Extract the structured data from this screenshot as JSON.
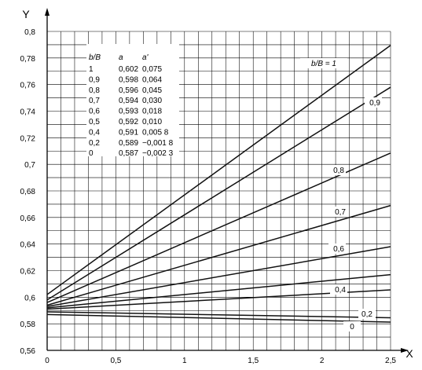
{
  "chart_data": {
    "type": "line",
    "xlabel": "X",
    "ylabel": "Y",
    "xlim": [
      0,
      2.5
    ],
    "ylim": [
      0.56,
      0.8
    ],
    "grid": true,
    "x_ticks": [
      {
        "value": 0,
        "label": "0"
      },
      {
        "value": 0.5,
        "label": "0,5"
      },
      {
        "value": 1,
        "label": "1"
      },
      {
        "value": 1.5,
        "label": "1,5"
      },
      {
        "value": 2,
        "label": "2"
      },
      {
        "value": 2.5,
        "label": "2,5"
      }
    ],
    "y_ticks": [
      {
        "value": 0.56,
        "label": "0,56"
      },
      {
        "value": 0.58,
        "label": "0,58"
      },
      {
        "value": 0.6,
        "label": "0,6"
      },
      {
        "value": 0.62,
        "label": "0,62"
      },
      {
        "value": 0.64,
        "label": "0,64"
      },
      {
        "value": 0.66,
        "label": "0,66"
      },
      {
        "value": 0.68,
        "label": "0,68"
      },
      {
        "value": 0.7,
        "label": "0,7"
      },
      {
        "value": 0.72,
        "label": "0,72"
      },
      {
        "value": 0.74,
        "label": "0,74"
      },
      {
        "value": 0.76,
        "label": "0,76"
      },
      {
        "value": 0.78,
        "label": "0,78"
      },
      {
        "value": 0.8,
        "label": "0,8"
      }
    ],
    "series": [
      {
        "label": "b/B = 1",
        "a": 0.602,
        "a_prime": 0.075,
        "x": [
          0,
          2.5
        ],
        "y": [
          0.602,
          0.7895
        ]
      },
      {
        "label": "0,9",
        "a": 0.598,
        "a_prime": 0.064,
        "x": [
          0,
          2.5
        ],
        "y": [
          0.598,
          0.758
        ]
      },
      {
        "label": "0,8",
        "a": 0.596,
        "a_prime": 0.045,
        "x": [
          0,
          2.5
        ],
        "y": [
          0.596,
          0.7085
        ]
      },
      {
        "label": "0,7",
        "a": 0.594,
        "a_prime": 0.03,
        "x": [
          0,
          2.5
        ],
        "y": [
          0.594,
          0.669
        ]
      },
      {
        "label": "0,6",
        "a": 0.593,
        "a_prime": 0.018,
        "x": [
          0,
          2.5
        ],
        "y": [
          0.593,
          0.638
        ]
      },
      {
        "label": "",
        "a": 0.592,
        "a_prime": 0.01,
        "x": [
          0,
          2.5
        ],
        "y": [
          0.592,
          0.617
        ]
      },
      {
        "label": "0,4",
        "a": 0.591,
        "a_prime": 0.0058,
        "x": [
          0,
          2.5
        ],
        "y": [
          0.591,
          0.6055
        ]
      },
      {
        "label": "0,2",
        "a": 0.589,
        "a_prime": -0.0018,
        "x": [
          0,
          2.5
        ],
        "y": [
          0.589,
          0.5845
        ]
      },
      {
        "label": "0",
        "a": 0.587,
        "a_prime": -0.0023,
        "x": [
          0,
          2.5
        ],
        "y": [
          0.587,
          0.58125
        ]
      }
    ],
    "table": {
      "headers": [
        "b/B",
        "a",
        "a'"
      ],
      "rows": [
        [
          "1",
          "0,602",
          "0,075"
        ],
        [
          "0,9",
          "0,598",
          "0,064"
        ],
        [
          "0,8",
          "0,596",
          "0,045"
        ],
        [
          "0,7",
          "0,594",
          "0,030"
        ],
        [
          "0,6",
          "0,593",
          "0,018"
        ],
        [
          "0,5",
          "0,592",
          "0,010"
        ],
        [
          "0,4",
          "0,591",
          "0,005 8"
        ],
        [
          "0,2",
          "0,589",
          "−0,001 8"
        ],
        [
          "0",
          "0,587",
          "−0,002 3"
        ]
      ]
    }
  }
}
